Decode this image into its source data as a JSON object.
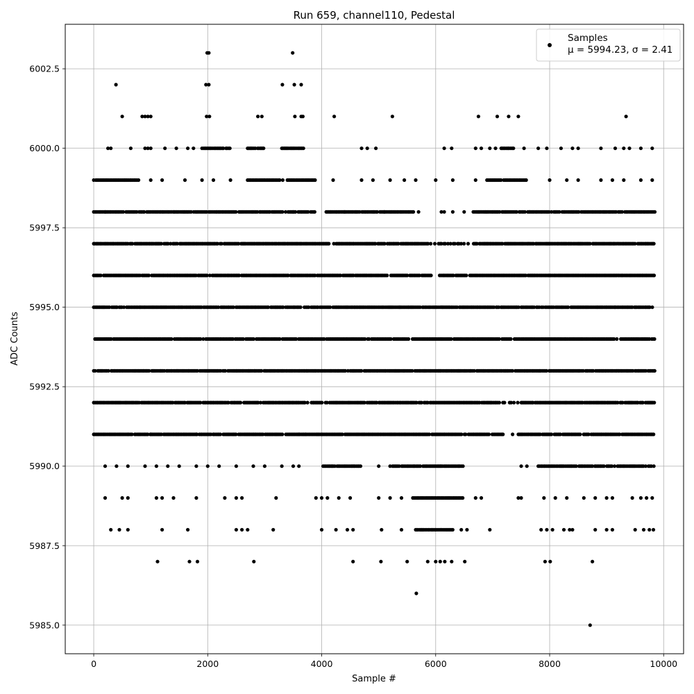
{
  "chart_data": {
    "type": "scatter",
    "title": "Run 659, channel110, Pedestal",
    "xlabel": "Sample #",
    "ylabel": "ADC Counts",
    "xlim": [
      -500,
      10350
    ],
    "ylim": [
      5984.1,
      6003.9
    ],
    "x_ticks": [
      0,
      2000,
      4000,
      6000,
      8000,
      10000
    ],
    "x_tick_labels": [
      "0",
      "2000",
      "4000",
      "6000",
      "8000",
      "10000"
    ],
    "y_ticks": [
      5985.0,
      5987.5,
      5990.0,
      5992.5,
      5995.0,
      5997.5,
      6000.0,
      6002.5
    ],
    "y_tick_labels": [
      "5985.0",
      "5987.5",
      "5990.0",
      "5992.5",
      "5995.0",
      "5997.5",
      "6000.0",
      "6002.5"
    ],
    "grid": true,
    "legend_position": "top-right",
    "marker_color": "#000000",
    "series": [
      {
        "name": "Samples",
        "stats_label": "μ = 5994.23, σ = 2.41",
        "mean": 5994.23,
        "sigma": 2.41,
        "x_range": [
          0,
          9850
        ],
        "levels": [
          {
            "y": 5996,
            "ranges": [
              [
                0,
                5920
              ],
              [
                6070,
                9850
              ]
            ]
          },
          {
            "y": 5995,
            "ranges": [
              [
                0,
                9850
              ]
            ]
          },
          {
            "y": 5994,
            "ranges": [
              [
                0,
                9850
              ]
            ]
          },
          {
            "y": 5993,
            "ranges": [
              [
                0,
                9850
              ]
            ]
          },
          {
            "y": 5997,
            "ranges": [
              [
                0,
                9850
              ]
            ],
            "sparse": [
              [
                4060,
                4250
              ],
              [
                5850,
                6680
              ]
            ]
          },
          {
            "y": 5992,
            "ranges": [
              [
                0,
                9850
              ]
            ],
            "sparse": [
              [
                3700,
                3860
              ],
              [
                7000,
                7500
              ]
            ]
          },
          {
            "y": 5998,
            "ranges": [
              [
                0,
                3880
              ],
              [
                4080,
                5620
              ],
              [
                6660,
                9850
              ]
            ],
            "scatter": [
              200,
              1400,
              3500,
              4400,
              5100,
              5700,
              6100,
              6150,
              6300,
              6500
            ]
          },
          {
            "y": 5991,
            "ranges": [
              [
                0,
                3720
              ],
              [
                3720,
                7200
              ],
              [
                7450,
                9850
              ]
            ],
            "scatter": [
              1000,
              1800,
              2100,
              3600,
              7350
            ]
          },
          {
            "y": 5990,
            "ranges": [
              [
                4000,
                4700
              ],
              [
                5200,
                6500
              ],
              [
                7800,
                9850
              ]
            ],
            "scatter": [
              200,
              400,
              600,
              900,
              1100,
              1300,
              1500,
              1800,
              2000,
              2200,
              2500,
              2800,
              3000,
              3300,
              3500,
              3600,
              5000,
              7500,
              7600
            ]
          },
          {
            "y": 5999,
            "ranges": [
              [
                0,
                800
              ],
              [
                2700,
                3900
              ],
              [
                6900,
                7600
              ]
            ],
            "scatter": [
              1000,
              1200,
              1600,
              1900,
              2100,
              2400,
              4200,
              4700,
              4900,
              5200,
              5450,
              5650,
              6000,
              6300,
              6700,
              8000,
              8300,
              8500,
              8900,
              9100,
              9300,
              9600,
              9800
            ]
          },
          {
            "y": 5989,
            "ranges": [
              [
                5600,
                6500
              ]
            ],
            "scatter": [
              200,
              500,
              600,
              1100,
              1200,
              1400,
              1800,
              2300,
              2500,
              2600,
              3200,
              3900,
              4000,
              4100,
              4300,
              4500,
              5000,
              5200,
              5400,
              6700,
              6800,
              7450,
              7500,
              7900,
              8100,
              8300,
              8600,
              8800,
              9000,
              9100,
              9450,
              9600,
              9700,
              9800
            ]
          },
          {
            "y": 6000,
            "ranges": [
              [
                1900,
                2400
              ],
              [
                2700,
                3000
              ],
              [
                3300,
                3700
              ],
              [
                7150,
                7400
              ]
            ],
            "scatter": [
              250,
              300,
              650,
              900,
              950,
              1000,
              1250,
              1450,
              1650,
              1750,
              4700,
              4800,
              4950,
              6150,
              6280,
              6700,
              6800,
              6950,
              7050,
              7550,
              7800,
              7950,
              8200,
              8400,
              8500,
              8900,
              9150,
              9300,
              9400,
              9600,
              9800
            ]
          },
          {
            "y": 5988,
            "ranges": [
              [
                5650,
                6300
              ]
            ],
            "scatter": [
              300,
              450,
              600,
              1200,
              1650,
              2500,
              2600,
              2700,
              3150,
              4000,
              4250,
              4450,
              4550,
              5050,
              5400,
              6450,
              6550,
              6950,
              7850,
              7950,
              8050,
              8250,
              8350,
              8400,
              8800,
              9000,
              9100,
              9500,
              9650,
              9750,
              9820
            ]
          },
          {
            "y": 6001,
            "points": [
              500,
              850,
              900,
              950,
              1000,
              1980,
              2030,
              2880,
              2950,
              3530,
              3640,
              3670,
              4220,
              5240,
              6750,
              7080,
              7280,
              7450,
              9340
            ]
          },
          {
            "y": 5987,
            "points": [
              1120,
              1680,
              1820,
              2810,
              4550,
              5040,
              5500,
              5860,
              6000,
              6080,
              6160,
              6280,
              6510,
              7920,
              8010,
              8750
            ]
          },
          {
            "y": 6002,
            "points": [
              390,
              1970,
              2020,
              3310,
              3520,
              3640
            ]
          },
          {
            "y": 6003,
            "points": [
              1990,
              2020,
              3490
            ]
          },
          {
            "y": 5986,
            "points": [
              5660
            ]
          },
          {
            "y": 5985,
            "points": [
              8710
            ]
          }
        ]
      }
    ]
  }
}
